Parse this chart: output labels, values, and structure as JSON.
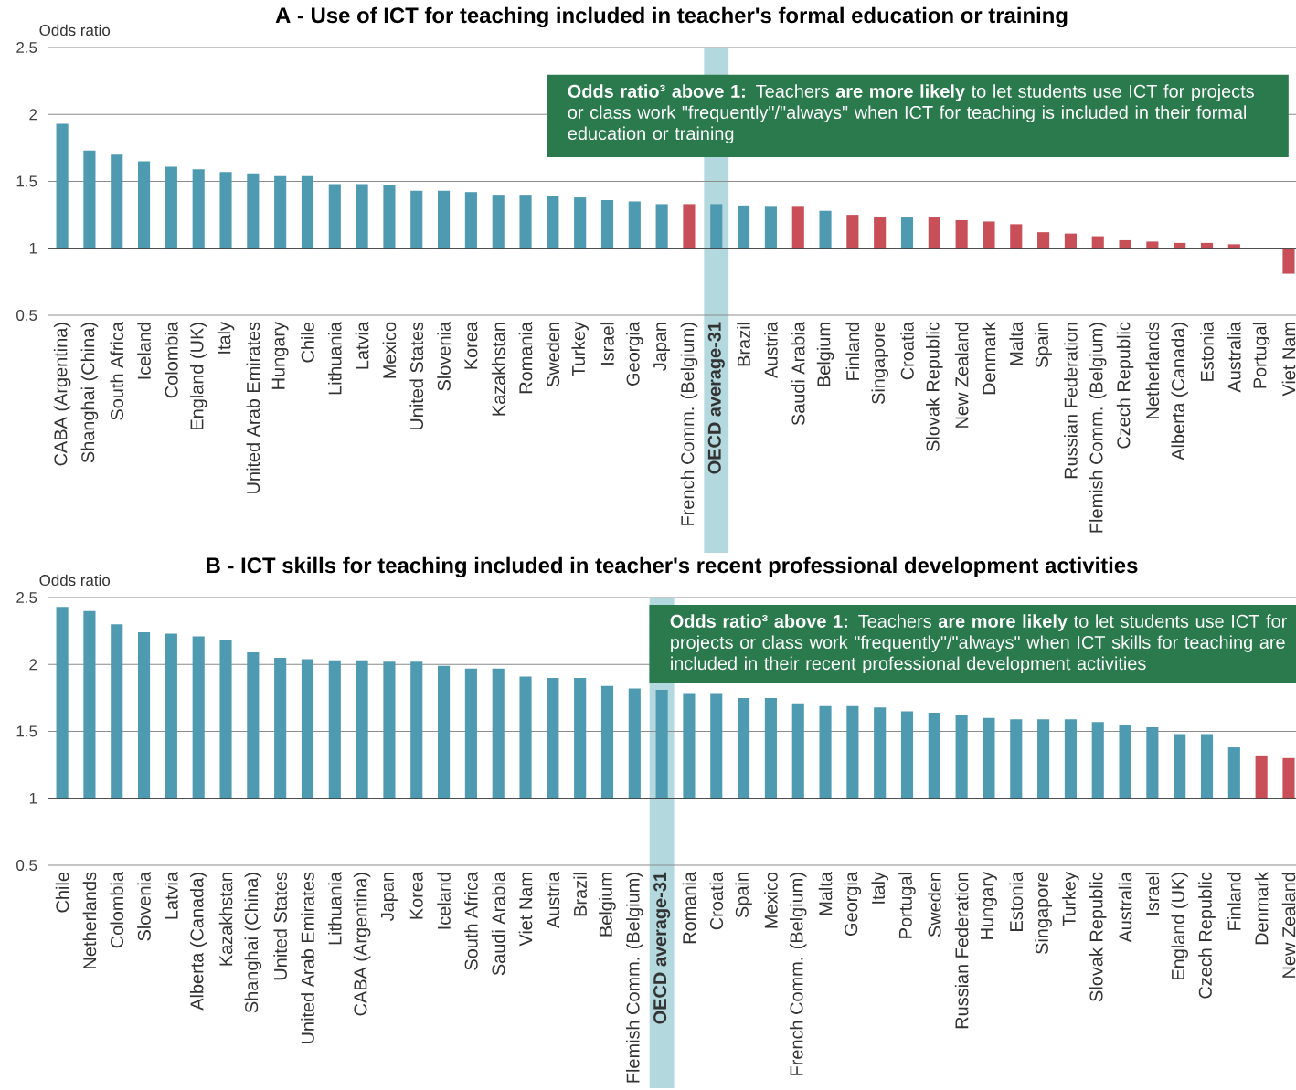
{
  "chart_data": [
    {
      "type": "bar",
      "title": "A - Use of ICT for teaching included in teacher's formal education or training",
      "ylabel": "Odds ratio",
      "categories": [
        "CABA (Argentina)",
        "Shanghai (China)",
        "South Africa",
        "Iceland",
        "Colombia",
        "England (UK)",
        "Italy",
        "United Arab Emirates",
        "Hungary",
        "Chile",
        "Lithuania",
        "Latvia",
        "Mexico",
        "United States",
        "Slovenia",
        "Korea",
        "Kazakhstan",
        "Romania",
        "Sweden",
        "Turkey",
        "Israel",
        "Georgia",
        "Japan",
        "French Comm. (Belgium)",
        "OECD average-31",
        "Brazil",
        "Austria",
        "Saudi Arabia",
        "Belgium",
        "Finland",
        "Singapore",
        "Croatia",
        "Slovak Republic",
        "New Zealand",
        "Denmark",
        "Malta",
        "Spain",
        "Russian Federation",
        "Flemish Comm. (Belgium)",
        "Czech Republic",
        "Netherlands",
        "Alberta (Canada)",
        "Estonia",
        "Australia",
        "Portugal",
        "Viet Nam"
      ],
      "base": [
        1,
        1,
        1,
        1,
        1,
        1,
        1,
        1,
        1,
        1,
        1,
        1,
        1,
        1,
        1,
        1,
        1,
        1,
        1,
        1,
        1,
        1,
        1,
        1,
        1,
        1,
        1,
        1,
        1,
        1,
        1,
        1,
        1,
        1,
        1,
        1,
        1,
        1,
        1,
        1,
        1,
        1,
        1,
        1,
        null,
        1
      ],
      "values": [
        0.93,
        0.73,
        0.7,
        0.65,
        0.61,
        0.59,
        0.57,
        0.56,
        0.54,
        0.54,
        0.48,
        0.48,
        0.47,
        0.43,
        0.43,
        0.42,
        0.4,
        0.4,
        0.39,
        0.38,
        0.36,
        0.35,
        0.33,
        0.33,
        0.33,
        0.32,
        0.31,
        0.31,
        0.28,
        0.25,
        0.23,
        0.23,
        0.23,
        0.21,
        0.2,
        0.18,
        0.12,
        0.11,
        0.09,
        0.06,
        0.05,
        0.04,
        0.04,
        0.03,
        null,
        -0.19
      ],
      "colors": [
        "#4e9ab0",
        "#4e9ab0",
        "#4e9ab0",
        "#4e9ab0",
        "#4e9ab0",
        "#4e9ab0",
        "#4e9ab0",
        "#4e9ab0",
        "#4e9ab0",
        "#4e9ab0",
        "#4e9ab0",
        "#4e9ab0",
        "#4e9ab0",
        "#4e9ab0",
        "#4e9ab0",
        "#4e9ab0",
        "#4e9ab0",
        "#4e9ab0",
        "#4e9ab0",
        "#4e9ab0",
        "#4e9ab0",
        "#4e9ab0",
        "#4e9ab0",
        "#c84f57",
        "#4e9ab0",
        "#4e9ab0",
        "#4e9ab0",
        "#c84f57",
        "#4e9ab0",
        "#c84f57",
        "#c84f57",
        "#4e9ab0",
        "#c84f57",
        "#c84f57",
        "#c84f57",
        "#c84f57",
        "#c84f57",
        "#c84f57",
        "#c84f57",
        "#c84f57",
        "#c84f57",
        "#c84f57",
        "#c84f57",
        "#c84f57",
        "#c84f57",
        "#c84f57"
      ],
      "ylim": [
        0.5,
        2.5
      ],
      "yticks": [
        0.5,
        1,
        1.5,
        2,
        2.5
      ],
      "grid": "y",
      "ref_lines": [
        {
          "axis": "y",
          "value": 1
        }
      ],
      "bands": [
        {
          "axis": "x",
          "from": "OECD average-31",
          "to": "OECD average-31",
          "color": "#b3d9df"
        }
      ],
      "annotations": [
        "**Odds ratio³ above 1:** Teachers **are more likely** to let students use ICT for projects or class work \"frequently\"/\"always\" when ICT for teaching is included in their formal education or training"
      ]
    },
    {
      "type": "bar",
      "title": "B - ICT skills for teaching included in teacher's recent professional development activities",
      "ylabel": "Odds ratio",
      "categories": [
        "Chile",
        "Netherlands",
        "Colombia",
        "Slovenia",
        "Latvia",
        "Alberta (Canada)",
        "Kazakhstan",
        "Shanghai (China)",
        "United States",
        "United Arab Emirates",
        "Lithuania",
        "CABA (Argentina)",
        "Japan",
        "Korea",
        "Iceland",
        "South Africa",
        "Saudi Arabia",
        "Viet Nam",
        "Austria",
        "Brazil",
        "Belgium",
        "Flemish Comm. (Belgium)",
        "OECD average-31",
        "Romania",
        "Croatia",
        "Spain",
        "Mexico",
        "French Comm. (Belgium)",
        "Malta",
        "Georgia",
        "Italy",
        "Portugal",
        "Sweden",
        "Russian Federation",
        "Hungary",
        "Estonia",
        "Singapore",
        "Turkey",
        "Slovak Republic",
        "Australia",
        "Israel",
        "England (UK)",
        "Czech Republic",
        "Finland",
        "Denmark",
        "New Zealand"
      ],
      "base": [
        1,
        1,
        1,
        1,
        1,
        1,
        1,
        1,
        1,
        1,
        1,
        1,
        1,
        1,
        1,
        1,
        1,
        1,
        1,
        1,
        1,
        1,
        1,
        1,
        1,
        1,
        1,
        1,
        1,
        1,
        1,
        1,
        1,
        1,
        1,
        1,
        1,
        1,
        1,
        1,
        1,
        1,
        1,
        1,
        1,
        1
      ],
      "values": [
        1.43,
        1.4,
        1.3,
        1.24,
        1.23,
        1.21,
        1.18,
        1.09,
        1.05,
        1.04,
        1.03,
        1.03,
        1.02,
        1.02,
        0.99,
        0.97,
        0.97,
        0.91,
        0.9,
        0.9,
        0.84,
        0.82,
        0.81,
        0.78,
        0.78,
        0.75,
        0.75,
        0.71,
        0.69,
        0.69,
        0.68,
        0.65,
        0.64,
        0.62,
        0.6,
        0.59,
        0.59,
        0.59,
        0.57,
        0.55,
        0.53,
        0.48,
        0.48,
        0.38,
        0.32,
        0.3
      ],
      "colors": [
        "#4e9ab0",
        "#4e9ab0",
        "#4e9ab0",
        "#4e9ab0",
        "#4e9ab0",
        "#4e9ab0",
        "#4e9ab0",
        "#4e9ab0",
        "#4e9ab0",
        "#4e9ab0",
        "#4e9ab0",
        "#4e9ab0",
        "#4e9ab0",
        "#4e9ab0",
        "#4e9ab0",
        "#4e9ab0",
        "#4e9ab0",
        "#4e9ab0",
        "#4e9ab0",
        "#4e9ab0",
        "#4e9ab0",
        "#4e9ab0",
        "#4e9ab0",
        "#4e9ab0",
        "#4e9ab0",
        "#4e9ab0",
        "#4e9ab0",
        "#4e9ab0",
        "#4e9ab0",
        "#4e9ab0",
        "#4e9ab0",
        "#4e9ab0",
        "#4e9ab0",
        "#4e9ab0",
        "#4e9ab0",
        "#4e9ab0",
        "#4e9ab0",
        "#4e9ab0",
        "#4e9ab0",
        "#4e9ab0",
        "#4e9ab0",
        "#4e9ab0",
        "#4e9ab0",
        "#4e9ab0",
        "#c84f57",
        "#c84f57"
      ],
      "ylim": [
        0.5,
        2.5
      ],
      "yticks": [
        0.5,
        1,
        1.5,
        2,
        2.5
      ],
      "grid": "y",
      "ref_lines": [
        {
          "axis": "y",
          "value": 1
        }
      ],
      "bands": [
        {
          "axis": "x",
          "from": "OECD average-31",
          "to": "OECD average-31",
          "color": "#b3d9df"
        }
      ],
      "annotations": [
        "**Odds ratio³ above 1:** Teachers **are more likely** to let students use ICT for projects or class work \"frequently\"/\"always\" when ICT skills for teaching are included in their recent professional development activities"
      ]
    }
  ]
}
